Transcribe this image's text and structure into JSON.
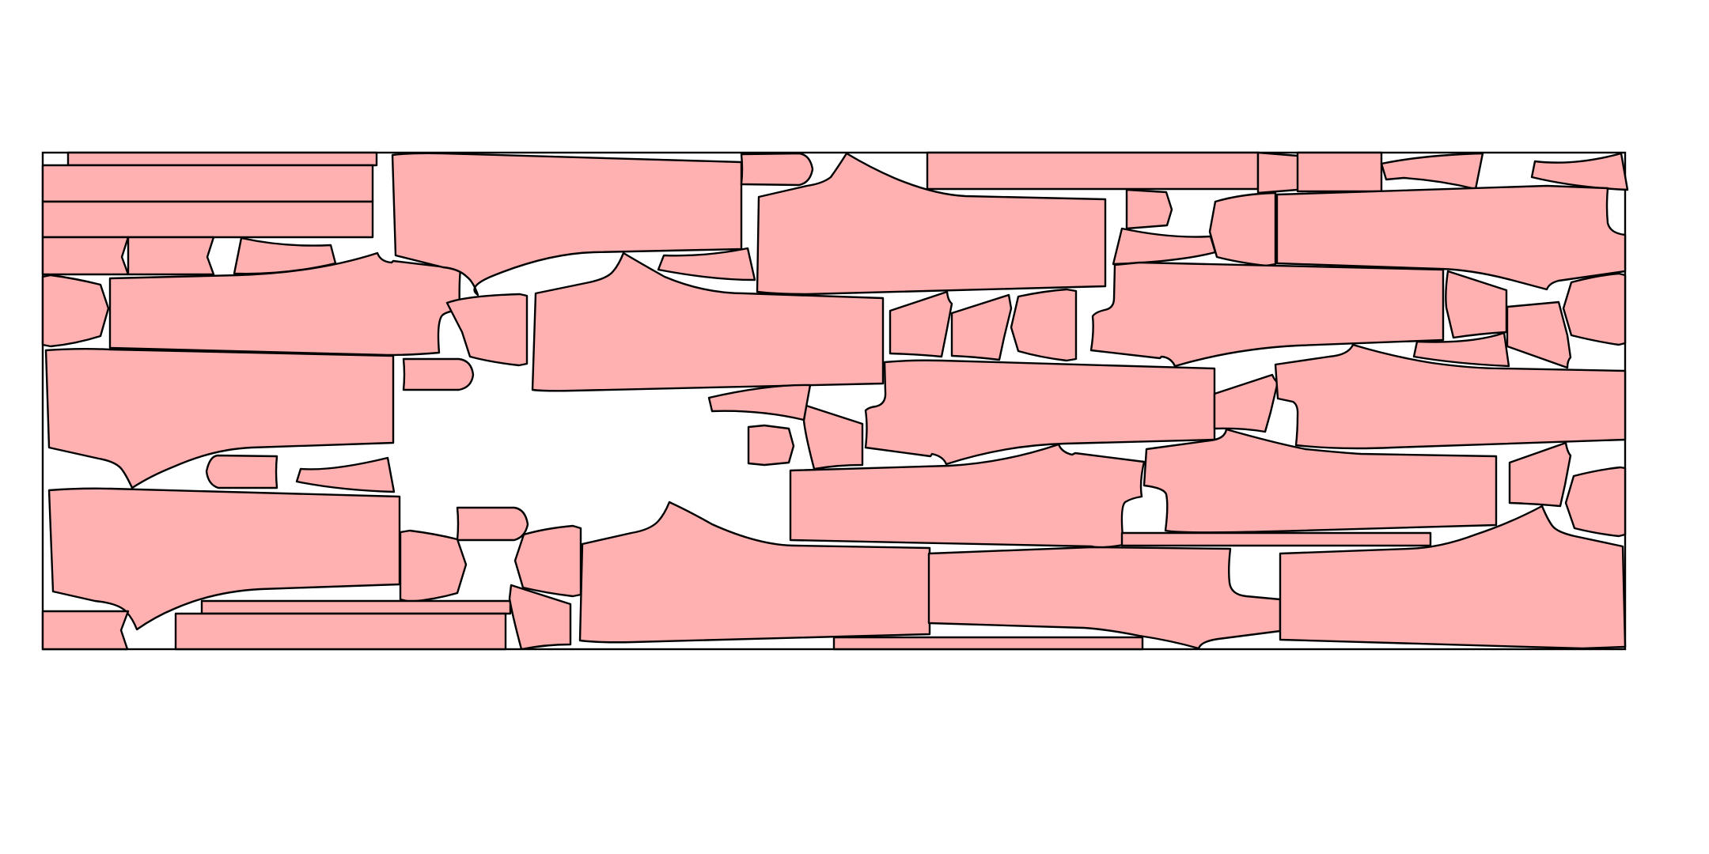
{
  "diagram": {
    "kind": "cutting-layout",
    "piece_fill": "#ffb1b1",
    "outline_color": "#000000",
    "background": "#ffffff",
    "piece_count": 63
  }
}
